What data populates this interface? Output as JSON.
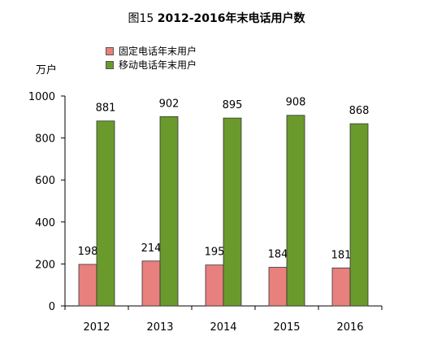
{
  "chart_data": {
    "type": "bar",
    "title_prefix": "图15 ",
    "title_main": "2012-2016年末电话用户数",
    "unit": "万户",
    "categories": [
      "2012",
      "2013",
      "2014",
      "2015",
      "2016"
    ],
    "series": [
      {
        "name": "固定电话年末用户",
        "values": [
          198,
          214,
          195,
          184,
          181
        ],
        "color": "#e8807e"
      },
      {
        "name": "移动电话年末用户",
        "values": [
          881,
          902,
          895,
          908,
          868
        ],
        "color": "#6a9a2c"
      }
    ],
    "ylim": [
      0,
      1000
    ],
    "yticks": [
      "0",
      "200",
      "400",
      "600",
      "800",
      "1000"
    ],
    "grid": false,
    "legend_position": "top-left"
  }
}
